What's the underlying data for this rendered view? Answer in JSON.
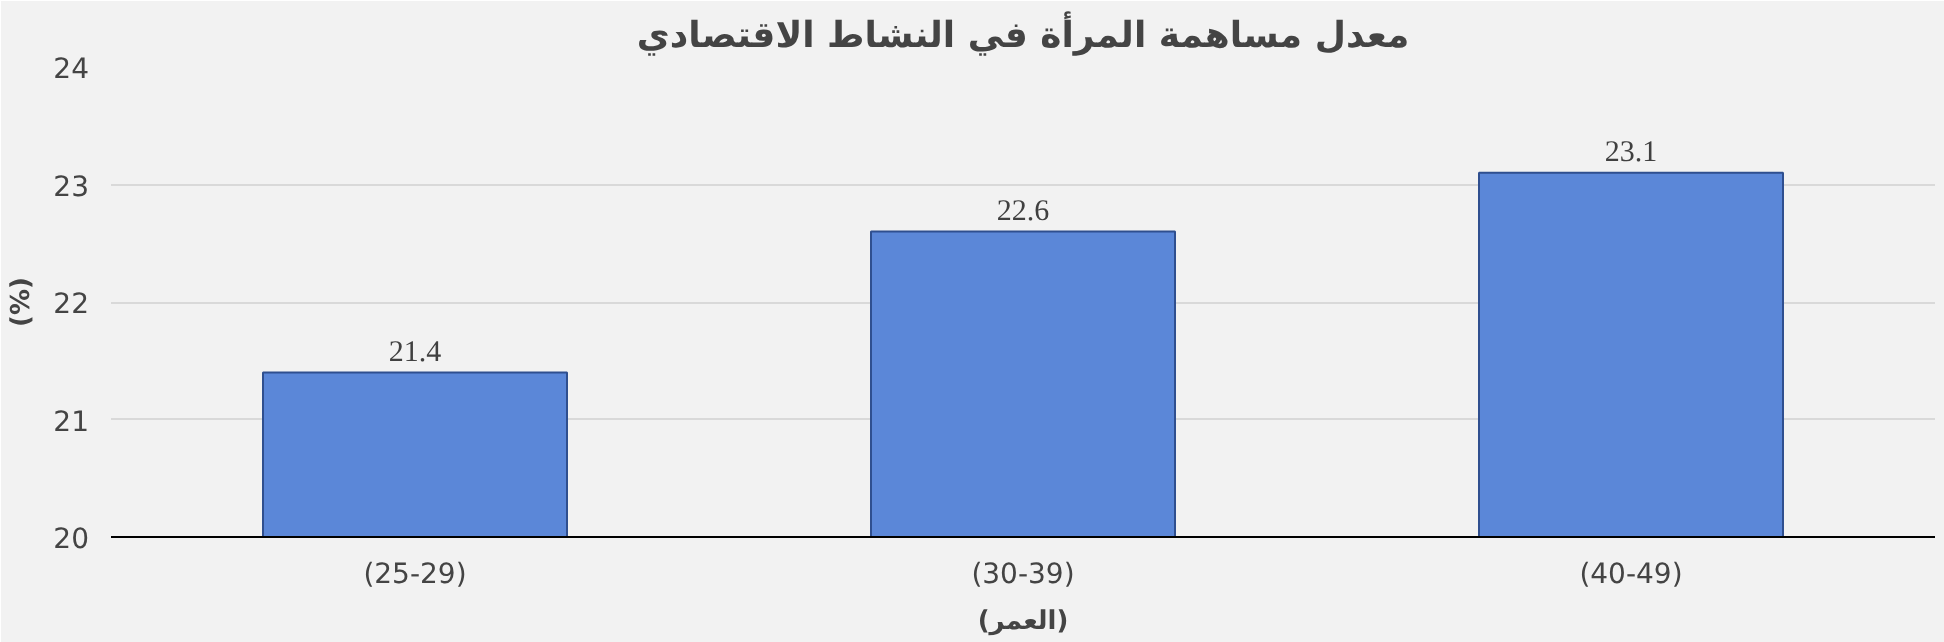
{
  "chart_data": {
    "type": "bar",
    "title": "معدل مساهمة المرأة في النشاط الاقتصادي",
    "xlabel": "(العمر)",
    "ylabel": "(%)",
    "categories": [
      "(25-29)",
      "(30-39)",
      "(40-49)"
    ],
    "values": [
      21.4,
      22.6,
      23.1
    ],
    "color": "#5b87d8",
    "ylim": [
      20,
      24
    ],
    "yticks": [
      20,
      21,
      22,
      23,
      24
    ],
    "grid": "y",
    "data_labels": true
  }
}
